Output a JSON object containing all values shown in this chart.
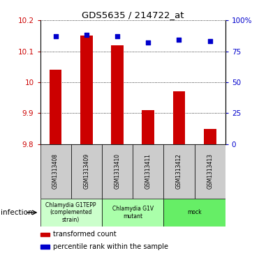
{
  "title": "GDS5635 / 214722_at",
  "samples": [
    "GSM1313408",
    "GSM1313409",
    "GSM1313410",
    "GSM1313411",
    "GSM1313412",
    "GSM1313413"
  ],
  "bar_values": [
    10.04,
    10.15,
    10.12,
    9.91,
    9.97,
    9.85
  ],
  "percentile_values": [
    87,
    88,
    87,
    82,
    84,
    83
  ],
  "ylim": [
    9.8,
    10.2
  ],
  "yticks": [
    9.8,
    9.9,
    10.0,
    10.1,
    10.2
  ],
  "ytick_labels": [
    "9.8",
    "9.9",
    "10",
    "10.1",
    "10.2"
  ],
  "bar_color": "#cc0000",
  "dot_color": "#0000cc",
  "bar_base": 9.8,
  "groups": [
    {
      "label": "Chlamydia G1TEPP\n(complemented\nstrain)",
      "start": 0,
      "end": 2,
      "color": "#ccffcc"
    },
    {
      "label": "Chlamydia G1V\nmutant",
      "start": 2,
      "end": 4,
      "color": "#aaffaa"
    },
    {
      "label": "mock",
      "start": 4,
      "end": 6,
      "color": "#66ee66"
    }
  ],
  "right_yticks": [
    0,
    25,
    50,
    75,
    100
  ],
  "right_ytick_labels": [
    "0",
    "25",
    "50",
    "75",
    "100%"
  ],
  "left_color": "#cc0000",
  "right_color": "#0000cc",
  "infection_label": "infection",
  "legend_bar_label": "transformed count",
  "legend_dot_label": "percentile rank within the sample",
  "sample_box_color": "#cccccc",
  "bar_width": 0.4
}
